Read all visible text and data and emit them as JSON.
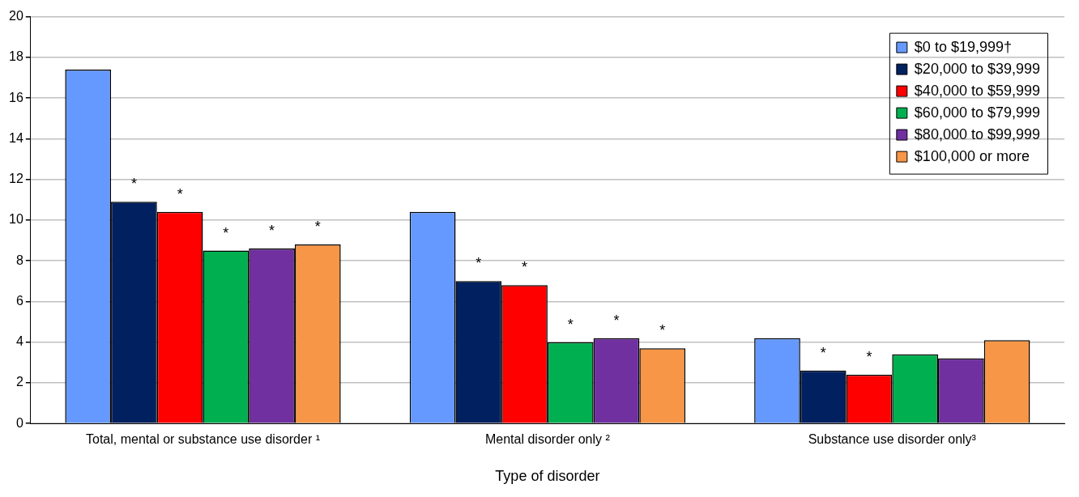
{
  "chart_data": {
    "type": "bar",
    "xlabel": "Type of disorder",
    "categories": [
      "Total, mental or substance use disorder ¹",
      "Mental disorder only ²",
      "Substance use disorder only³"
    ],
    "series": [
      {
        "name": "$0 to $19,999†",
        "color": "#6699ff",
        "values": [
          17.4,
          10.4,
          4.2
        ]
      },
      {
        "name": "$20,000 to $39,999",
        "color": "#002060",
        "values": [
          10.9,
          7.0,
          2.6
        ],
        "value_labels": [
          "*",
          "*",
          "*"
        ]
      },
      {
        "name": "$40,000 to $59,999",
        "color": "#ff0000",
        "values": [
          10.4,
          6.8,
          2.4
        ],
        "value_labels": [
          "*",
          "*",
          "*"
        ]
      },
      {
        "name": "$60,000 to $79,999",
        "color": "#00b050",
        "values": [
          8.5,
          4.0,
          3.4
        ],
        "value_labels": [
          "*",
          "*",
          null
        ]
      },
      {
        "name": "$80,000 to $99,999",
        "color": "#7030a0",
        "values": [
          8.6,
          4.2,
          3.2
        ],
        "value_labels": [
          "*",
          "*",
          null
        ]
      },
      {
        "name": "$100,000 or more",
        "color": "#f79646",
        "values": [
          8.8,
          3.7,
          4.1
        ],
        "value_labels": [
          "*",
          "*",
          null
        ]
      }
    ],
    "ylim": [
      0,
      20
    ],
    "yticks": [
      0,
      2,
      4,
      6,
      8,
      10,
      12,
      14,
      16,
      18,
      20
    ],
    "grid": "y",
    "legend": "top right"
  }
}
